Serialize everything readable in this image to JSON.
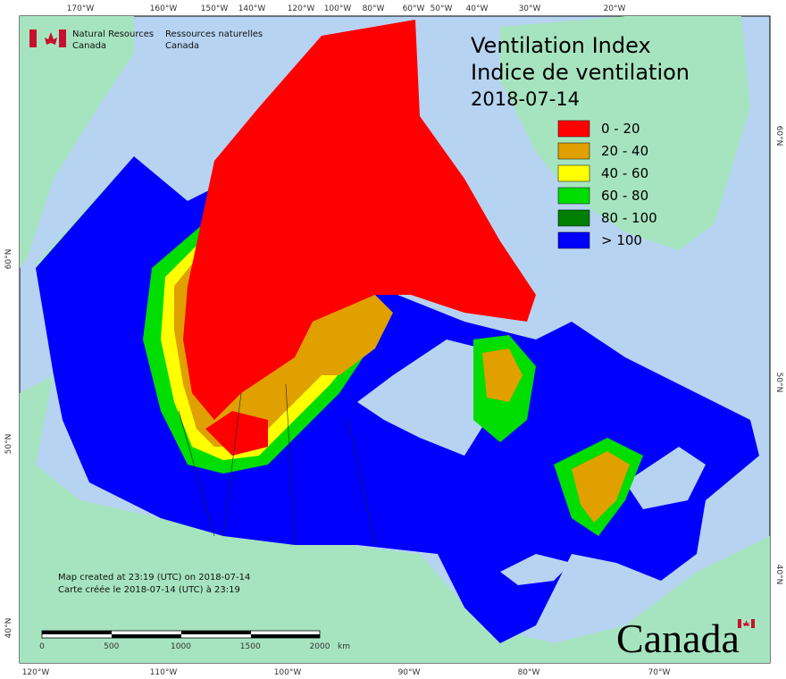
{
  "header": {
    "title": "Ventilation Index",
    "title_fr": "Indice de ventilation",
    "date": "2018-07-14"
  },
  "agency": {
    "name_en_1": "Natural Resources",
    "name_en_2": "Canada",
    "name_fr_1": "Ressources naturelles",
    "name_fr_2": "Canada"
  },
  "legend": {
    "items": [
      {
        "label": "0 - 20",
        "color": "#ff0000"
      },
      {
        "label": "20 - 40",
        "color": "#dfa000"
      },
      {
        "label": "40 - 60",
        "color": "#ffff00"
      },
      {
        "label": "60 - 80",
        "color": "#00dd00"
      },
      {
        "label": "80 - 100",
        "color": "#007f00"
      },
      {
        "label": "> 100",
        "color": "#0000ff"
      }
    ]
  },
  "graticule": {
    "top": [
      "170°W",
      "160°W",
      "150°W",
      "140°W",
      "120°W",
      "100°W",
      "80°W",
      "60°W",
      "50°W",
      "40°W",
      "30°W",
      "20°W"
    ],
    "bottom": [
      "120°W",
      "110°W",
      "100°W",
      "90°W",
      "80°W",
      "70°W"
    ],
    "left": [
      "60°N",
      "50°N",
      "40°N"
    ],
    "right": [
      "60°N",
      "50°N",
      "40°N"
    ]
  },
  "credits": {
    "en": "Map created at 23:19 (UTC) on 2018-07-14",
    "fr": "Carte créée le 2018-07-14 (UTC) à 23:19"
  },
  "scale_bar": {
    "ticks": [
      "0",
      "500",
      "1000",
      "1500",
      "2000"
    ],
    "unit": "km"
  },
  "wordmark": "Canada"
}
